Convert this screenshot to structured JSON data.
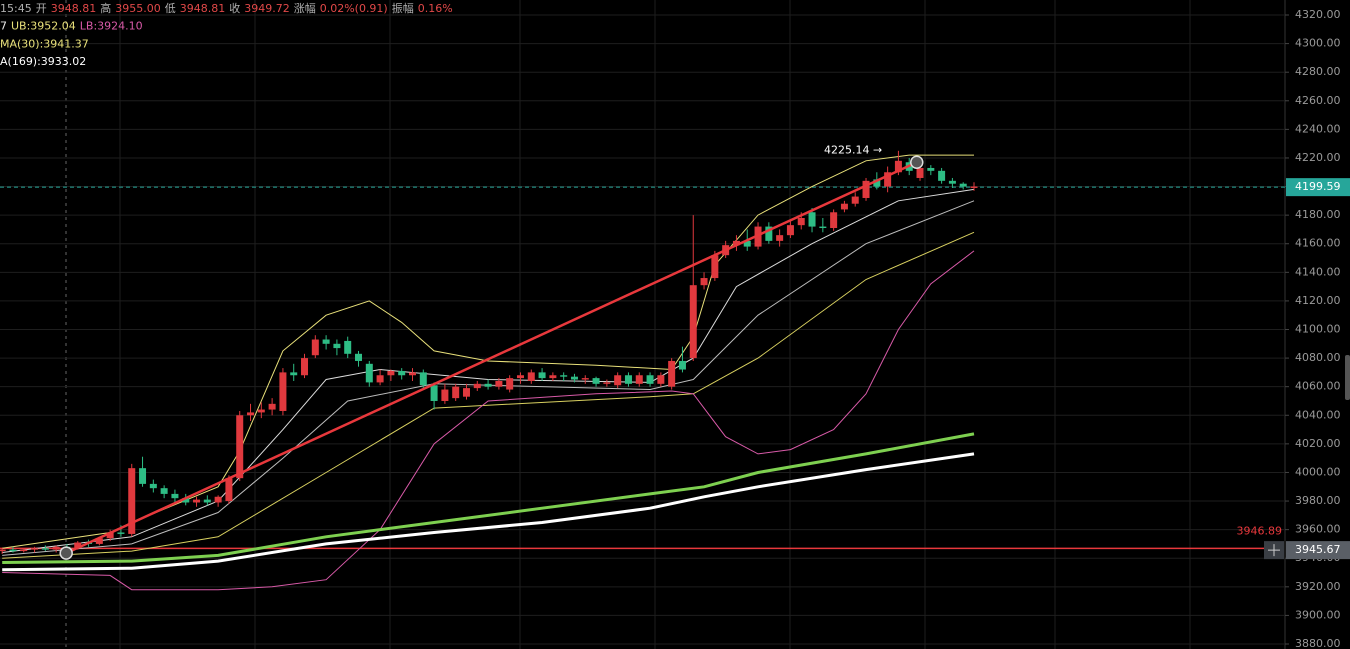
{
  "chart_data": {
    "type": "candlestick",
    "ylim": [
      3876.5,
      4330.5
    ],
    "xlim": [
      -0.2,
      118.8
    ],
    "grid": true,
    "yticks": [
      {
        "value": 4320,
        "label": "4320.00"
      },
      {
        "value": 4300,
        "label": "4300.00"
      },
      {
        "value": 4280,
        "label": "4280.00"
      },
      {
        "value": 4260,
        "label": "4260.00"
      },
      {
        "value": 4240,
        "label": "4240.00"
      },
      {
        "value": 4220,
        "label": "4220.00"
      },
      {
        "value": 4200,
        "label": "4200.00"
      },
      {
        "value": 4180,
        "label": "4180.00"
      },
      {
        "value": 4160,
        "label": "4160.00"
      },
      {
        "value": 4140,
        "label": "4140.00"
      },
      {
        "value": 4120,
        "label": "4120.00"
      },
      {
        "value": 4100,
        "label": "4100.00"
      },
      {
        "value": 4080,
        "label": "4080.00"
      },
      {
        "value": 4060,
        "label": "4060.00"
      },
      {
        "value": 4040,
        "label": "4040.00"
      },
      {
        "value": 4020,
        "label": "4020.00"
      },
      {
        "value": 4000,
        "label": "4000.00"
      },
      {
        "value": 3980,
        "label": "3980.00"
      },
      {
        "value": 3960,
        "label": "3960.00"
      },
      {
        "value": 3940,
        "label": "3940.00"
      },
      {
        "value": 3920,
        "label": "3920.00"
      },
      {
        "value": 3900,
        "label": "3900.00"
      },
      {
        "value": 3880,
        "label": "3880.00"
      }
    ],
    "info_rows": [
      [
        {
          "text": "15:45",
          "color": "#b0b0b0"
        },
        {
          "text": "开",
          "color": "#b0b0b0"
        },
        {
          "text": "3948.81",
          "color": "#e04848"
        },
        {
          "text": "高",
          "color": "#b0b0b0"
        },
        {
          "text": "3955.00",
          "color": "#e04848"
        },
        {
          "text": "低",
          "color": "#b0b0b0"
        },
        {
          "text": "3948.81",
          "color": "#e04848"
        },
        {
          "text": "收",
          "color": "#b0b0b0"
        },
        {
          "text": "3949.72",
          "color": "#e04848"
        },
        {
          "text": "涨幅",
          "color": "#b0b0b0"
        },
        {
          "text": "0.02%(0.91)",
          "color": "#e04848"
        },
        {
          "text": "振幅",
          "color": "#b0b0b0"
        },
        {
          "text": "0.16%",
          "color": "#e04848"
        }
      ],
      [
        {
          "text": "7",
          "color": "#e6e6e6"
        },
        {
          "text": "UB:3952.04",
          "color": "#e8e07a"
        },
        {
          "text": "LB:3924.10",
          "color": "#d85aa8"
        }
      ],
      [
        {
          "text": "MA(30):3941.37",
          "color": "#e8e07a"
        }
      ],
      [
        {
          "text": "A(169):3933.02",
          "color": "#ffffff"
        }
      ]
    ],
    "candles": {
      "up_color": "#e0393e",
      "down_color": "#2ebd85",
      "x": [
        0,
        1,
        2,
        3,
        4,
        5,
        6,
        7,
        8,
        9,
        10,
        11,
        12,
        13,
        14,
        15,
        16,
        17,
        18,
        19,
        20,
        21,
        22,
        23,
        24,
        25,
        26,
        27,
        28,
        29,
        30,
        31,
        32,
        33,
        34,
        35,
        36,
        37,
        38,
        39,
        40,
        41,
        42,
        43,
        44,
        45,
        46,
        47,
        48,
        49,
        50,
        51,
        52,
        53,
        54,
        55,
        56,
        57,
        58,
        59,
        60,
        61,
        62,
        63,
        64,
        65,
        66,
        67,
        68,
        69,
        70,
        71,
        72,
        73,
        74,
        75,
        76,
        77,
        78,
        79,
        80,
        81,
        82,
        83,
        84,
        85,
        86,
        87,
        88,
        89,
        90
      ],
      "open": [
        3945,
        3946,
        3945,
        3946,
        3947,
        3946,
        3948,
        3947,
        3951,
        3950,
        3954,
        3958,
        3957,
        4003,
        3992,
        3989,
        3985,
        3982,
        3979,
        3981,
        3979,
        3980,
        3996,
        4040,
        4042,
        4044,
        4043,
        4070,
        4068,
        4082,
        4093,
        4090,
        4092,
        4083,
        4076,
        4063,
        4068,
        4071,
        4068,
        4070,
        4061,
        4050,
        4052,
        4053,
        4059,
        4062,
        4060,
        4058,
        4066,
        4064,
        4070,
        4066,
        4068,
        4067,
        4065,
        4066,
        4062,
        4061,
        4068,
        4062,
        4068,
        4062,
        4060,
        4078,
        4080,
        4131,
        4136,
        4152,
        4159,
        4162,
        4158,
        4172,
        4162,
        4166,
        4173,
        4182,
        4172,
        4171,
        4184,
        4188,
        4192,
        4205,
        4200,
        4210,
        4217,
        4206,
        4213,
        4211,
        4204,
        4202,
        4199
      ],
      "high": [
        3947,
        3948,
        3947,
        3948,
        3949,
        3949,
        3950,
        3952,
        3953,
        3955,
        3960,
        3963,
        4006,
        4011,
        3995,
        3991,
        3988,
        3985,
        3983,
        3984,
        3984,
        3998,
        4043,
        4048,
        4049,
        4052,
        4073,
        4076,
        4083,
        4096,
        4096,
        4093,
        4095,
        4085,
        4078,
        4072,
        4072,
        4073,
        4073,
        4072,
        4063,
        4062,
        4062,
        4062,
        4064,
        4065,
        4066,
        4068,
        4070,
        4072,
        4073,
        4070,
        4070,
        4069,
        4068,
        4067,
        4065,
        4070,
        4070,
        4070,
        4070,
        4070,
        4080,
        4088,
        4180,
        4140,
        4155,
        4162,
        4166,
        4170,
        4175,
        4175,
        4170,
        4176,
        4182,
        4185,
        4178,
        4184,
        4190,
        4196,
        4206,
        4210,
        4214,
        4225,
        4220,
        4216,
        4215,
        4213,
        4206,
        4203,
        4203
      ],
      "low": [
        3943,
        3944,
        3944,
        3944,
        3945,
        3944,
        3945,
        3946,
        3948,
        3949,
        3952,
        3955,
        3955,
        3990,
        3986,
        3982,
        3978,
        3977,
        3976,
        3977,
        3976,
        3978,
        3994,
        4036,
        4038,
        4040,
        4040,
        4064,
        4066,
        4080,
        4086,
        4082,
        4080,
        4074,
        4060,
        4061,
        4064,
        4065,
        4064,
        4058,
        4044,
        4048,
        4050,
        4051,
        4057,
        4058,
        4058,
        4056,
        4062,
        4062,
        4064,
        4064,
        4064,
        4063,
        4062,
        4060,
        4060,
        4059,
        4060,
        4060,
        4060,
        4060,
        4058,
        4070,
        4078,
        4128,
        4134,
        4150,
        4155,
        4155,
        4156,
        4160,
        4158,
        4164,
        4170,
        4168,
        4168,
        4169,
        4182,
        4186,
        4190,
        4198,
        4196,
        4208,
        4208,
        4204,
        4208,
        4202,
        4199,
        4198,
        4197
      ],
      "close": [
        3946,
        3945,
        3946,
        3947,
        3946,
        3948,
        3947,
        3951,
        3950,
        3954,
        3958,
        3957,
        4003,
        3992,
        3989,
        3985,
        3982,
        3979,
        3981,
        3979,
        3983,
        3996,
        4040,
        4042,
        4044,
        4048,
        4070,
        4068,
        4080,
        4093,
        4090,
        4087,
        4083,
        4078,
        4063,
        4068,
        4071,
        4068,
        4070,
        4061,
        4050,
        4058,
        4060,
        4059,
        4062,
        4060,
        4064,
        4066,
        4068,
        4070,
        4066,
        4068,
        4067,
        4065,
        4066,
        4062,
        4063,
        4068,
        4062,
        4068,
        4062,
        4068,
        4078,
        4072,
        4131,
        4136,
        4152,
        4159,
        4162,
        4158,
        4172,
        4162,
        4166,
        4173,
        4178,
        4172,
        4171,
        4182,
        4188,
        4193,
        4204,
        4200,
        4210,
        4218,
        4211,
        4213,
        4211,
        4204,
        4202,
        4200,
        4200
      ]
    },
    "lines": [
      {
        "color": "#e8e07a",
        "width": 1,
        "x": [
          0,
          10,
          12,
          20,
          22,
          26,
          30,
          34,
          37,
          40,
          45,
          55,
          62,
          64,
          66,
          70,
          75,
          80,
          84,
          90
        ],
        "values": [
          3947,
          3958,
          3965,
          3990,
          4015,
          4085,
          4110,
          4120,
          4105,
          4085,
          4078,
          4075,
          4072,
          4095,
          4145,
          4180,
          4200,
          4218,
          4222,
          4222
        ]
      },
      {
        "color": "#dcdcdc",
        "width": 1,
        "x": [
          0,
          12,
          20,
          26,
          30,
          35,
          45,
          60,
          64,
          68,
          75,
          83,
          90
        ],
        "values": [
          3944,
          3955,
          3980,
          4030,
          4065,
          4072,
          4065,
          4063,
          4080,
          4130,
          4160,
          4190,
          4198
        ]
      },
      {
        "color": "#bcbcbc",
        "width": 1,
        "x": [
          0,
          12,
          20,
          26,
          32,
          40,
          60,
          64,
          70,
          80,
          90
        ],
        "values": [
          3942,
          3950,
          3972,
          4010,
          4050,
          4062,
          4058,
          4065,
          4110,
          4160,
          4190
        ]
      },
      {
        "color": "#d8d060",
        "width": 1,
        "x": [
          0,
          12,
          20,
          30,
          40,
          60,
          64,
          70,
          80,
          90
        ],
        "values": [
          3940,
          3945,
          3955,
          4000,
          4045,
          4053,
          4055,
          4080,
          4135,
          4168
        ]
      },
      {
        "color": "#d85aa8",
        "width": 1,
        "x": [
          0,
          10,
          12,
          20,
          25,
          30,
          35,
          40,
          45,
          55,
          62,
          64,
          67,
          70,
          73,
          77,
          80,
          83,
          86,
          90
        ],
        "values": [
          3930,
          3928,
          3918,
          3918,
          3920,
          3925,
          3960,
          4020,
          4050,
          4055,
          4057,
          4055,
          4025,
          4013,
          4016,
          4030,
          4055,
          4100,
          4132,
          4155
        ]
      },
      {
        "color": "#7ed050",
        "width": 3,
        "x": [
          0,
          12,
          20,
          30,
          40,
          50,
          60,
          65,
          70,
          80,
          90
        ],
        "values": [
          3937,
          3938,
          3942,
          3955,
          3965,
          3975,
          3985,
          3990,
          4000,
          4013,
          4027
        ]
      },
      {
        "color": "#ffffff",
        "width": 3,
        "x": [
          0,
          12,
          20,
          30,
          40,
          50,
          60,
          65,
          70,
          80,
          90
        ],
        "values": [
          3932,
          3933,
          3938,
          3950,
          3958,
          3965,
          3975,
          3983,
          3990,
          4002,
          4013
        ]
      }
    ],
    "trendline": {
      "color": "#e8383c",
      "x": [
        5.93,
        84.7
      ],
      "values": [
        3943.6,
        4217
      ]
    },
    "high_marker": {
      "x": 81.5,
      "value": 4225.14,
      "label": "4225.14 →"
    },
    "price_line": {
      "value": 4199.59,
      "color": "#26a69a"
    },
    "level_line": {
      "value": 3946.89,
      "color": "#e8383c"
    },
    "crosshair_price": 3945.67
  }
}
